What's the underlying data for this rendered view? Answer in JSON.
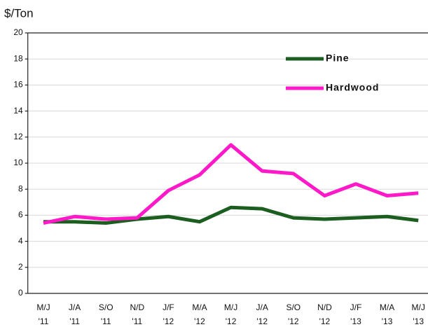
{
  "chart_data": {
    "type": "line",
    "y_label": "$/Ton",
    "categories": [
      "M/J '11",
      "J/A '11",
      "S/O '11",
      "N/D '11",
      "J/F '12",
      "M/A '12",
      "M/J '12",
      "J/A '12",
      "S/O '12",
      "N/D '12",
      "J/F '13",
      "M/A '13",
      "M/J '13"
    ],
    "series": [
      {
        "name": "Pine",
        "color": "#1b5e20",
        "values": [
          5.5,
          5.5,
          5.4,
          5.7,
          5.9,
          5.5,
          6.6,
          6.5,
          5.8,
          5.7,
          5.8,
          5.9,
          5.6
        ]
      },
      {
        "name": "Hardwood",
        "color": "#ff19c8",
        "values": [
          5.4,
          5.9,
          5.7,
          5.8,
          7.9,
          9.1,
          11.4,
          9.4,
          9.2,
          7.5,
          8.4,
          7.5,
          7.7
        ]
      }
    ],
    "ylim": [
      0,
      20
    ],
    "yticks": [
      0,
      2,
      4,
      6,
      8,
      10,
      12,
      14,
      16,
      18,
      20
    ],
    "grid": true,
    "legend": "upper right"
  }
}
